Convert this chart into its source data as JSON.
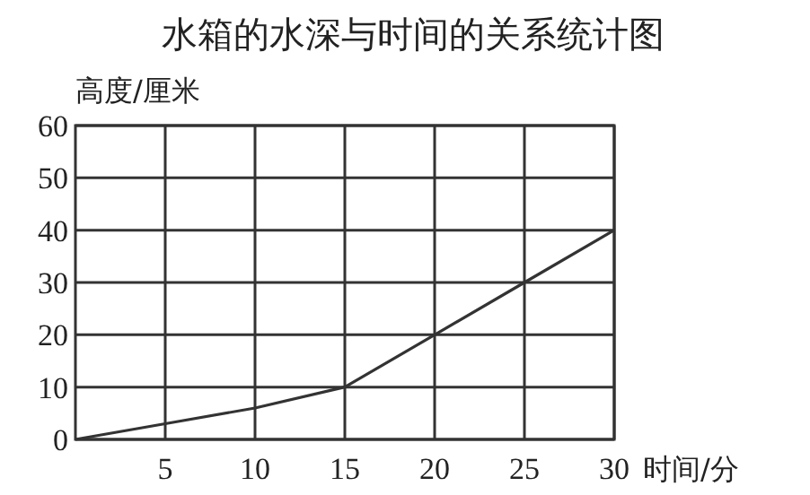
{
  "chart_data": {
    "type": "line",
    "title": "水箱的水深与时间的关系统计图",
    "xlabel": "时间/分",
    "ylabel": "高度/厘米",
    "x": [
      0,
      5,
      10,
      15,
      20,
      25,
      30
    ],
    "series": [
      {
        "color": "#333333",
        "values": [
          0,
          3,
          6,
          10,
          20,
          30,
          40
        ]
      }
    ],
    "xlim": [
      0,
      30
    ],
    "ylim": [
      0,
      60
    ],
    "xticks": [
      5,
      10,
      15,
      20,
      25,
      30
    ],
    "yticks": [
      0,
      10,
      20,
      30,
      40,
      50,
      60
    ],
    "grid": true,
    "marker": "none",
    "line_style": "solid"
  }
}
